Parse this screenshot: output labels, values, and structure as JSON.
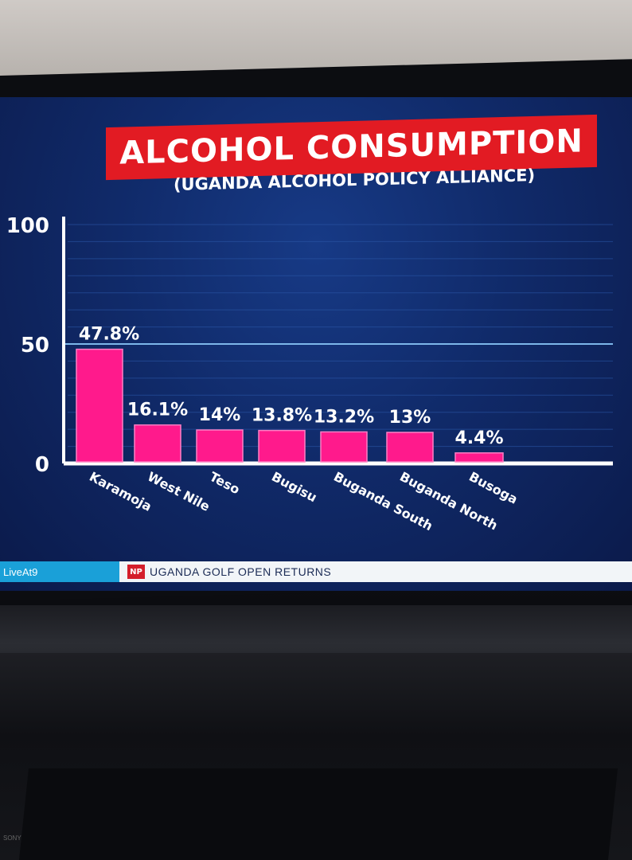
{
  "title": "ALCOHOL CONSUMPTION",
  "subtitle": "(UGANDA ALCOHOL POLICY ALLIANCE)",
  "ticker": {
    "left": "LiveAt9",
    "logo": "NP",
    "text": "UGANDA GOLF OPEN RETURNS"
  },
  "brand": "SONY",
  "colors": {
    "title_bg": "#e21b23",
    "bar": "#ff1a8c",
    "screen": "#123072",
    "ticker_left": "#1aa0d8"
  },
  "chart_data": {
    "type": "bar",
    "title": "ALCOHOL CONSUMPTION",
    "subtitle": "(UGANDA ALCOHOL POLICY ALLIANCE)",
    "categories": [
      "Karamoja",
      "West Nile",
      "Teso",
      "Bugisu",
      "Buganda South",
      "Buganda North",
      "Busoga"
    ],
    "values": [
      47.8,
      16.1,
      14,
      13.8,
      13.2,
      13,
      4.4
    ],
    "value_labels": [
      "47.8%",
      "16.1%",
      "14%",
      "13.8%",
      "13.2%",
      "13%",
      "4.4%"
    ],
    "yticks": [
      "0",
      "50",
      "100"
    ],
    "ylim": [
      0,
      100
    ],
    "reference_line": 50,
    "grid": true
  }
}
